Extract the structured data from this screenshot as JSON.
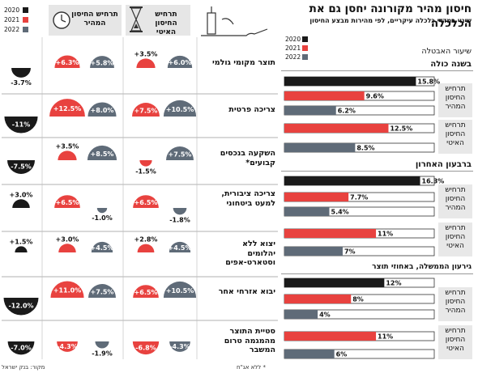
{
  "title": "חיסון מהיר מקורונה יחסן גם את הכלכלה",
  "subtitle": "שינוי במדדי כלכלה עיקריים, לפי מהירות מבצע החיסון",
  "vaccination_rate_label": "שיעור האבטלה",
  "years": [
    "2020",
    "2021",
    "2022"
  ],
  "colors": {
    "2020": "#1a1a1a",
    "2021": "#e8423f",
    "2022": "#5f6b78"
  },
  "left_headers": [
    "תרחיש החיסון האיטי",
    "תרחיש החיסון המהיר"
  ],
  "group_labels": [
    "תרחיש החיסון המהיר",
    "תרחיש החיסון האיטי"
  ],
  "footnote": "* ללא אג\"ח",
  "source": "מקור: בנק ישראל",
  "chart_data": [
    {
      "type": "bar",
      "title": "שיעור האבטלה",
      "panels": [
        {
          "name": "בשנה כולה",
          "groups": [
            {
              "name": "תרחיש החיסון המהיר",
              "values": {
                "2020": 15.8,
                "2021": 9.6,
                "2022": 6.2
              },
              "labels": {
                "2020": "15.8%",
                "2021": "9.6%",
                "2022": "6.2%"
              }
            },
            {
              "name": "תרחיש החיסון האיטי",
              "values": {
                "2021": 12.5,
                "2022": 8.5
              },
              "labels": {
                "2021": "12.5%",
                "2022": "8.5%"
              }
            }
          ]
        },
        {
          "name": "ברבעון האחרון",
          "groups": [
            {
              "name": "תרחיש החיסון המהיר",
              "values": {
                "2020": 16.3,
                "2021": 7.7,
                "2022": 5.4
              },
              "labels": {
                "2020": "16.3%",
                "2021": "7.7%",
                "2022": "5.4%"
              }
            },
            {
              "name": "תרחיש החיסון האיטי",
              "values": {
                "2021": 11,
                "2022": 7
              },
              "labels": {
                "2021": "11%",
                "2022": "7%"
              }
            }
          ]
        },
        {
          "name": "גירעון הממשלה, באחוזי תוצר",
          "groups": [
            {
              "name": "תרחיש החיסון המהיר",
              "values": {
                "2020": 12,
                "2021": 8,
                "2022": 4
              },
              "labels": {
                "2020": "12%",
                "2021": "8%",
                "2022": "4%"
              }
            },
            {
              "name": "תרחיש החיסון האיטי",
              "values": {
                "2021": 11,
                "2022": 6
              },
              "labels": {
                "2021": "11%",
                "2022": "6%"
              }
            }
          ]
        }
      ],
      "ylim": [
        0,
        18
      ]
    },
    {
      "type": "table",
      "columns": [
        "תרחיש החיסון האיטי",
        "תרחיש החיסון המהיר",
        "2020"
      ],
      "rows": [
        {
          "label": "תוצר מקומי גולמי",
          "slow": {
            "2021": 3.5,
            "2022": 6.0
          },
          "fast": {
            "2021": 6.3,
            "2022": 5.8
          },
          "y2020": -3.7,
          "slow_labels": {
            "2021": "+3.5%",
            "2022": "+6.0%"
          },
          "fast_labels": {
            "2021": "+6.3%",
            "2022": "+5.8%"
          },
          "y2020_label": "-3.7%"
        },
        {
          "label": "צריכה פרטית",
          "slow": {
            "2021": 7.5,
            "2022": 10.5
          },
          "fast": {
            "2021": 12.5,
            "2022": 8.0
          },
          "y2020": -11,
          "slow_labels": {
            "2021": "+7.5%",
            "2022": "+10.5%"
          },
          "fast_labels": {
            "2021": "+12.5%",
            "2022": "+8.0%"
          },
          "y2020_label": "-11%"
        },
        {
          "label": "השקעה בנכסים קבועים*",
          "slow": {
            "2021": -1.5,
            "2022": 7.5
          },
          "fast": {
            "2021": 3.5,
            "2022": 8.5
          },
          "y2020": -7.5,
          "slow_labels": {
            "2021": "-1.5%",
            "2022": "+7.5%"
          },
          "fast_labels": {
            "2021": "+3.5%",
            "2022": "+8.5%"
          },
          "y2020_label": "-7.5%"
        },
        {
          "label": "צריכה ציבורית, למעט ביטחוני",
          "slow": {
            "2021": 6.5,
            "2022": -1.8
          },
          "fast": {
            "2021": 6.5,
            "2022": -1.0
          },
          "y2020": 3.0,
          "slow_labels": {
            "2021": "+6.5%",
            "2022": "-1.8%"
          },
          "fast_labels": {
            "2021": "+6.5%",
            "2022": "-1.0%"
          },
          "y2020_label": "+3.0%"
        },
        {
          "label": "יצוא ללא יהלומים וסטארט-אפים",
          "slow": {
            "2021": 2.8,
            "2022": 4.5
          },
          "fast": {
            "2021": 3.0,
            "2022": 4.5
          },
          "y2020": 1.5,
          "slow_labels": {
            "2021": "+2.8%",
            "2022": "+4.5%"
          },
          "fast_labels": {
            "2021": "+3.0%",
            "2022": "+4.5%"
          },
          "y2020_label": "+1.5%"
        },
        {
          "label": "יבוא אזרחי אחר",
          "slow": {
            "2021": 6.5,
            "2022": 10.5
          },
          "fast": {
            "2021": 11.0,
            "2022": 7.5
          },
          "y2020": -12.0,
          "slow_labels": {
            "2021": "+6.5%",
            "2022": "+10.5%"
          },
          "fast_labels": {
            "2021": "+11.0%",
            "2022": "+7.5%"
          },
          "y2020_label": "-12.0%"
        },
        {
          "label": "סטיית התוצר מהמגמה טרום המשבר",
          "slow": {
            "2021": -6.8,
            "2022": -4.3
          },
          "fast": {
            "2021": -4.3,
            "2022": -1.9
          },
          "y2020": -7.0,
          "slow_labels": {
            "2021": "-6.8%",
            "2022": "-4.3%"
          },
          "fast_labels": {
            "2021": "-4.3%",
            "2022": "-1.9%"
          },
          "y2020_label": "-7.0%"
        }
      ]
    }
  ]
}
